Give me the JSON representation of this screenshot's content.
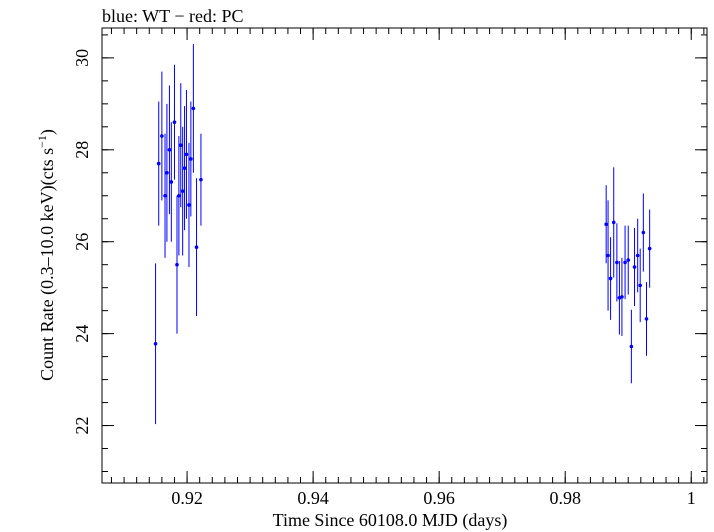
{
  "chart_data": {
    "type": "scatter",
    "title": "blue: WT − red: PC",
    "xlabel": "Time Since 60108.0 MJD (days)",
    "ylabel_main": "Count Rate (0.3–10.0 keV)(cts s",
    "ylabel_sup": "−1",
    "ylabel_end": ")",
    "xlim": [
      0.9065,
      1.0025
    ],
    "ylim": [
      20.75,
      30.65
    ],
    "x_ticks": [
      0.92,
      0.94,
      0.96,
      0.98,
      1.0
    ],
    "x_tick_labels": [
      "0.92",
      "0.94",
      "0.96",
      "0.98",
      "1"
    ],
    "x_minor_step": 0.002,
    "y_ticks": [
      22,
      24,
      26,
      28,
      30
    ],
    "y_tick_labels": [
      "22",
      "24",
      "26",
      "28",
      "30"
    ],
    "y_minor_step": 0.5,
    "grid": false,
    "series": [
      {
        "color": "#0000ff",
        "points": [
          {
            "x": 0.915,
            "y": 23.78,
            "err": 1.75
          },
          {
            "x": 0.9155,
            "y": 27.7,
            "err": 1.35
          },
          {
            "x": 0.916,
            "y": 28.3,
            "err": 1.4
          },
          {
            "x": 0.9165,
            "y": 27.0,
            "err": 1.35
          },
          {
            "x": 0.9168,
            "y": 27.5,
            "err": 1.5
          },
          {
            "x": 0.9172,
            "y": 28.0,
            "err": 1.4
          },
          {
            "x": 0.9175,
            "y": 27.3,
            "err": 1.3
          },
          {
            "x": 0.918,
            "y": 28.6,
            "err": 1.25
          },
          {
            "x": 0.9184,
            "y": 25.5,
            "err": 1.5
          },
          {
            "x": 0.9187,
            "y": 27.0,
            "err": 1.3
          },
          {
            "x": 0.919,
            "y": 28.1,
            "err": 1.35
          },
          {
            "x": 0.9193,
            "y": 27.1,
            "err": 1.4
          },
          {
            "x": 0.9196,
            "y": 27.6,
            "err": 1.35
          },
          {
            "x": 0.9199,
            "y": 27.9,
            "err": 1.4
          },
          {
            "x": 0.9203,
            "y": 26.8,
            "err": 1.35
          },
          {
            "x": 0.9206,
            "y": 27.8,
            "err": 1.25
          },
          {
            "x": 0.921,
            "y": 28.9,
            "err": 1.4
          },
          {
            "x": 0.9215,
            "y": 25.88,
            "err": 1.5
          },
          {
            "x": 0.9222,
            "y": 27.35,
            "err": 1.0
          },
          {
            "x": 0.9865,
            "y": 26.38,
            "err": 0.85
          },
          {
            "x": 0.9868,
            "y": 25.7,
            "err": 1.2
          },
          {
            "x": 0.9872,
            "y": 25.2,
            "err": 0.9
          },
          {
            "x": 0.9877,
            "y": 26.42,
            "err": 1.2
          },
          {
            "x": 0.9882,
            "y": 25.55,
            "err": 0.85
          },
          {
            "x": 0.9886,
            "y": 24.78,
            "err": 0.8
          },
          {
            "x": 0.989,
            "y": 24.8,
            "err": 0.85
          },
          {
            "x": 0.9895,
            "y": 25.55,
            "err": 0.8
          },
          {
            "x": 0.99,
            "y": 25.6,
            "err": 0.75
          },
          {
            "x": 0.9905,
            "y": 23.72,
            "err": 0.8
          },
          {
            "x": 0.991,
            "y": 25.45,
            "err": 0.85
          },
          {
            "x": 0.9915,
            "y": 25.7,
            "err": 0.8
          },
          {
            "x": 0.9919,
            "y": 25.05,
            "err": 0.8
          },
          {
            "x": 0.9924,
            "y": 26.2,
            "err": 0.85
          },
          {
            "x": 0.9929,
            "y": 24.32,
            "err": 0.8
          },
          {
            "x": 0.9934,
            "y": 25.85,
            "err": 0.85
          }
        ]
      }
    ]
  }
}
